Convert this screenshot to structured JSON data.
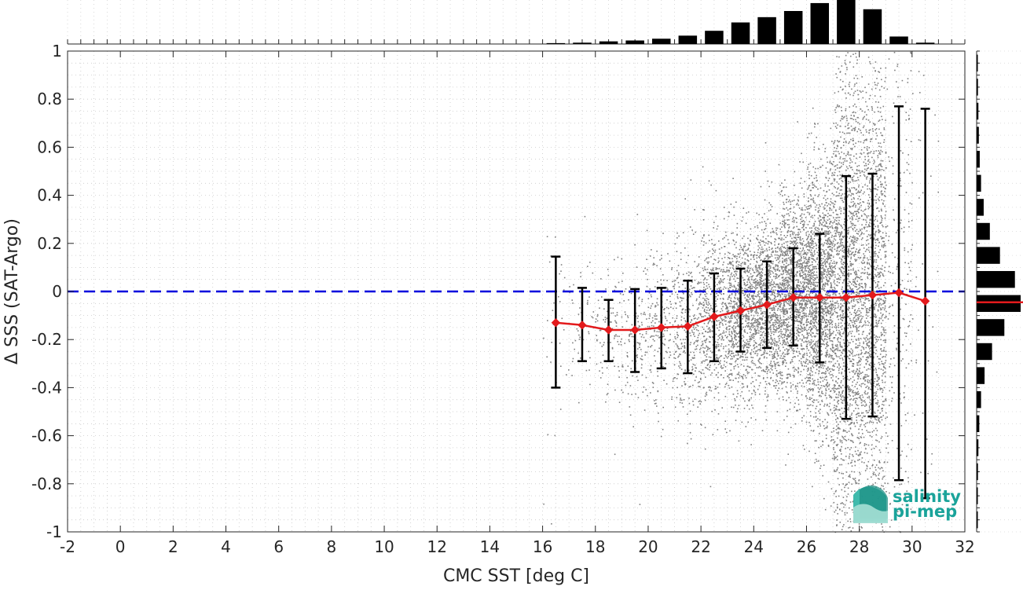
{
  "chart_data": {
    "type": "scatter",
    "title": "",
    "xlabel": "CMC SST [deg C]",
    "ylabel": "Δ SSS (SAT-Argo)",
    "xlim": [
      -2,
      32
    ],
    "ylim": [
      -1,
      1
    ],
    "x_ticks": [
      "-2",
      "0",
      "2",
      "4",
      "6",
      "8",
      "10",
      "12",
      "14",
      "16",
      "18",
      "20",
      "22",
      "24",
      "26",
      "28",
      "30",
      "32"
    ],
    "y_ticks": [
      "1",
      "0.8",
      "0.6",
      "0.4",
      "0.2",
      "0",
      "-0.2",
      "-0.4",
      "-0.6",
      "-0.8",
      "-1"
    ],
    "grid": "dotted",
    "zero_line": {
      "y": 0,
      "color": "#0000dd",
      "style": "dashed"
    },
    "scatter_color": "#808080",
    "binned_stats": {
      "color": "#e31a1c",
      "errorbar_color": "#000000",
      "x": [
        16.5,
        17.5,
        18.5,
        19.5,
        20.5,
        21.5,
        22.5,
        23.5,
        24.5,
        25.5,
        26.5,
        27.5,
        28.5,
        29.5,
        30.5
      ],
      "mean": [
        -0.13,
        -0.14,
        -0.16,
        -0.16,
        -0.15,
        -0.145,
        -0.105,
        -0.08,
        -0.055,
        -0.025,
        -0.025,
        -0.025,
        -0.015,
        -0.005,
        -0.04
      ],
      "upper": [
        0.145,
        0.015,
        -0.035,
        0.01,
        0.015,
        0.045,
        0.075,
        0.095,
        0.125,
        0.18,
        0.24,
        0.48,
        0.49,
        0.77,
        0.76
      ],
      "lower": [
        -0.4,
        -0.29,
        -0.29,
        -0.335,
        -0.32,
        -0.34,
        -0.29,
        -0.25,
        -0.235,
        -0.225,
        -0.295,
        -0.53,
        -0.52,
        -0.785,
        -0.86
      ]
    },
    "top_histogram": {
      "bin_centers": [
        16.5,
        17.5,
        18.5,
        19.5,
        20.5,
        21.5,
        22.5,
        23.5,
        24.5,
        25.5,
        26.5,
        27.5,
        28.5,
        29.5,
        30.5
      ],
      "relative_counts": [
        0.02,
        0.03,
        0.06,
        0.08,
        0.12,
        0.19,
        0.3,
        0.49,
        0.61,
        0.75,
        0.93,
        1.0,
        0.79,
        0.17,
        0.03
      ]
    },
    "right_histogram": {
      "bin_centers": [
        0.95,
        0.85,
        0.75,
        0.65,
        0.55,
        0.45,
        0.35,
        0.25,
        0.15,
        0.05,
        -0.05,
        -0.15,
        -0.25,
        -0.35,
        -0.45,
        -0.55,
        -0.65,
        -0.75,
        -0.85,
        -0.95
      ],
      "relative_counts": [
        0.02,
        0.03,
        0.04,
        0.05,
        0.07,
        0.1,
        0.16,
        0.3,
        0.53,
        0.87,
        1.0,
        0.63,
        0.35,
        0.18,
        0.1,
        0.06,
        0.04,
        0.03,
        0.02,
        0.01
      ],
      "mean_line": {
        "y": -0.045,
        "color": "#e31a1c"
      }
    }
  },
  "logo": {
    "line1": "salinity",
    "line2": "pi-mep",
    "color": "#1aa39a"
  }
}
